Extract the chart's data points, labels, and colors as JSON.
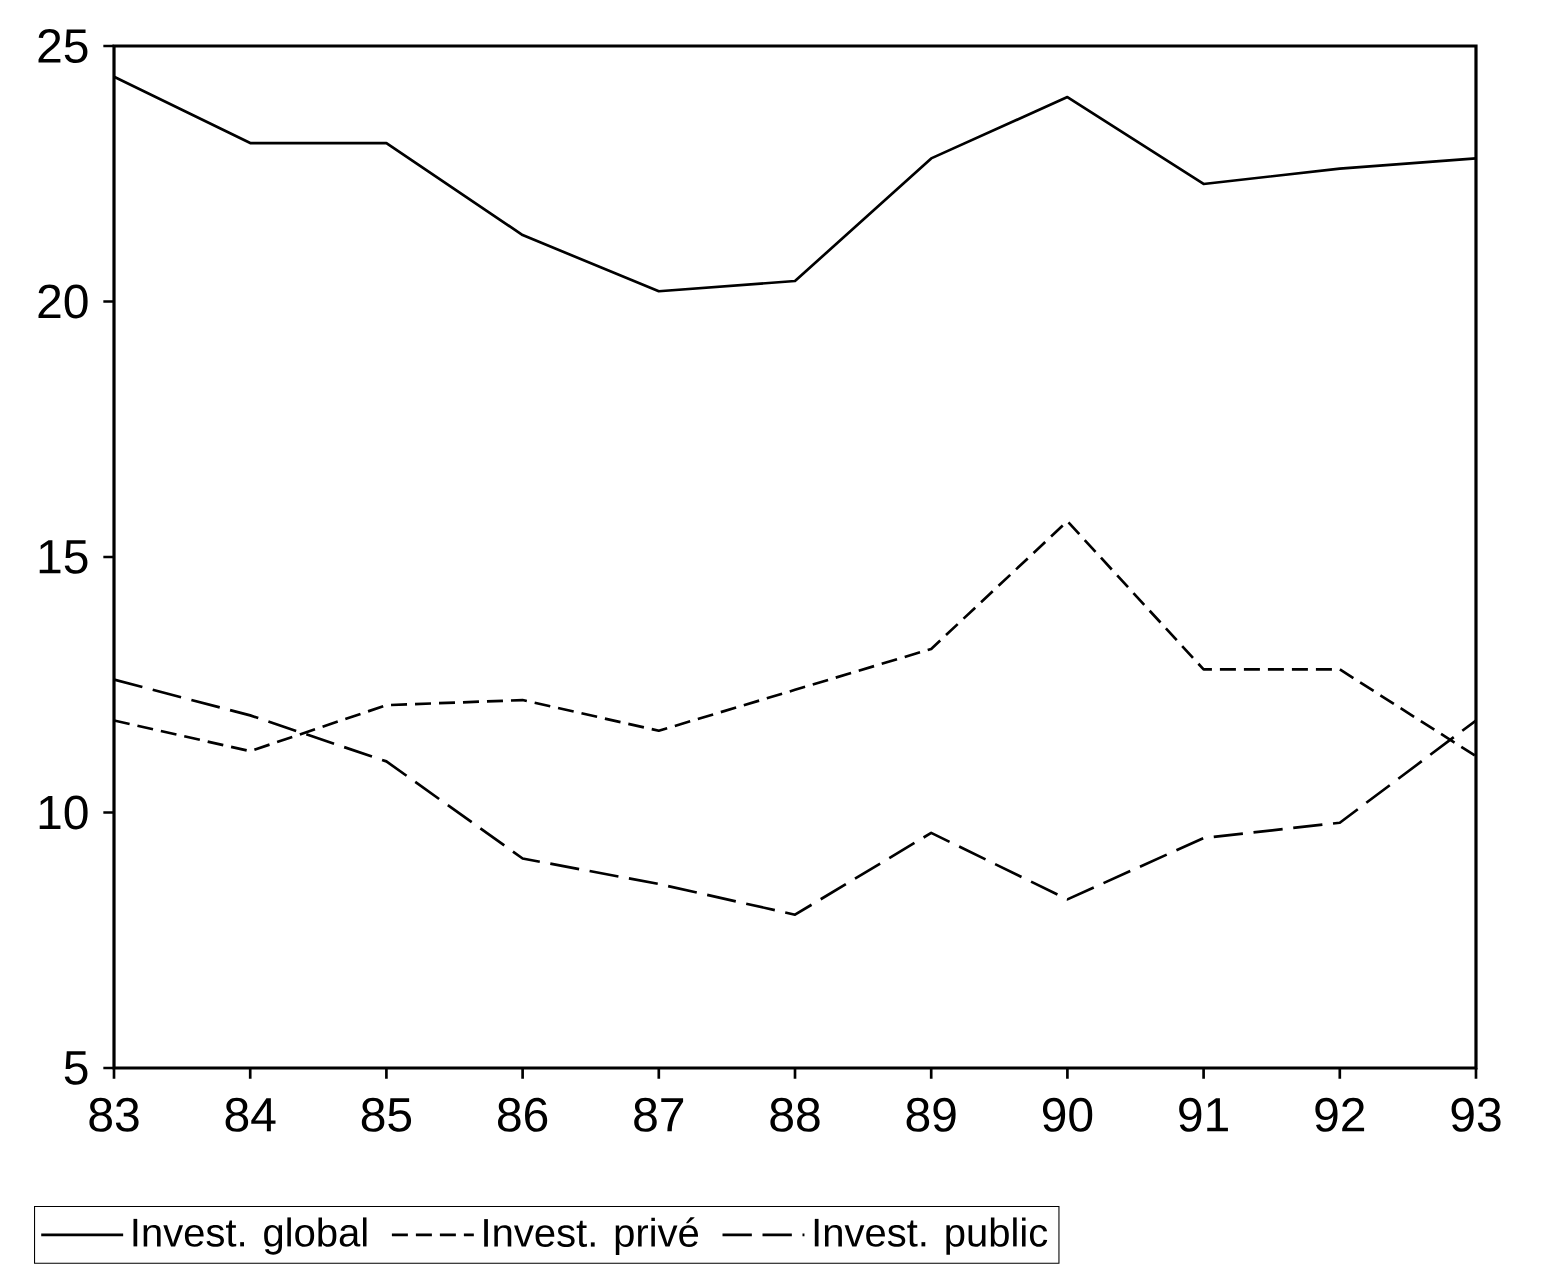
{
  "chart_data": {
    "type": "line",
    "x": [
      83,
      84,
      85,
      86,
      87,
      88,
      89,
      90,
      91,
      92,
      93
    ],
    "series": [
      {
        "name": "Invest. global",
        "color": "#000000",
        "line_style": "solid",
        "values": [
          24.4,
          23.1,
          23.1,
          21.3,
          20.2,
          20.4,
          22.8,
          24.0,
          22.3,
          22.6,
          22.8
        ]
      },
      {
        "name": "Invest. privé",
        "color": "#000000",
        "line_style": "dashed",
        "values": [
          11.8,
          11.2,
          12.1,
          12.2,
          11.6,
          12.4,
          13.2,
          15.7,
          12.8,
          12.8,
          11.1
        ]
      },
      {
        "name": "Invest. public",
        "color": "#000000",
        "line_style": "dashed",
        "values": [
          12.6,
          11.9,
          11.0,
          9.1,
          8.6,
          8.0,
          9.6,
          8.3,
          9.5,
          9.8,
          11.8
        ]
      }
    ],
    "xlim": [
      83,
      93
    ],
    "ylim": [
      5,
      25
    ],
    "xticks": [
      83,
      84,
      85,
      86,
      87,
      88,
      89,
      90,
      91,
      92,
      93
    ],
    "yticks": [
      5,
      10,
      15,
      20,
      25
    ],
    "legend": "bottom",
    "grid": false,
    "marker": "none"
  }
}
